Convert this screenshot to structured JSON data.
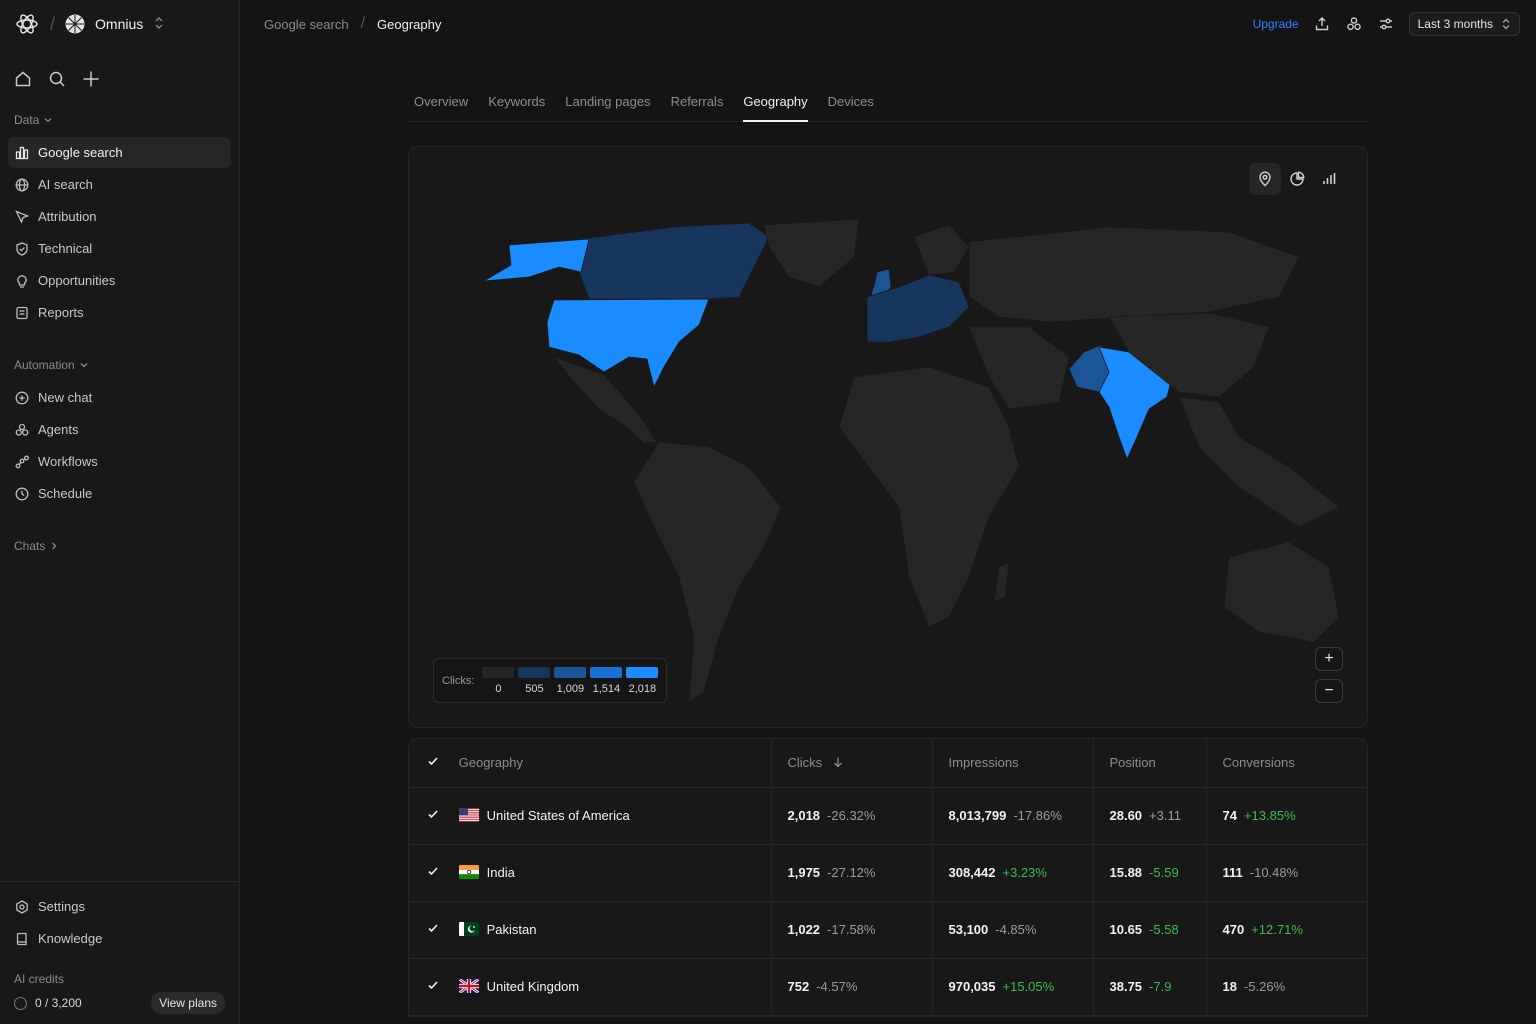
{
  "workspace": {
    "name": "Omnius"
  },
  "sidebar": {
    "data_section": "Data",
    "data_items": [
      {
        "label": "Google search",
        "icon": "bar-chart-icon",
        "active": true
      },
      {
        "label": "AI search",
        "icon": "globe-icon"
      },
      {
        "label": "Attribution",
        "icon": "cursor-icon"
      },
      {
        "label": "Technical",
        "icon": "shield-icon"
      },
      {
        "label": "Opportunities",
        "icon": "lightbulb-icon"
      },
      {
        "label": "Reports",
        "icon": "document-icon"
      }
    ],
    "automation_section": "Automation",
    "automation_items": [
      {
        "label": "New chat",
        "icon": "plus-circle-icon"
      },
      {
        "label": "Agents",
        "icon": "agents-icon"
      },
      {
        "label": "Workflows",
        "icon": "workflow-icon"
      },
      {
        "label": "Schedule",
        "icon": "clock-icon"
      }
    ],
    "chats_section": "Chats",
    "bottom_items": [
      {
        "label": "Settings",
        "icon": "gear-icon"
      },
      {
        "label": "Knowledge",
        "icon": "book-icon"
      }
    ],
    "credits_label": "AI credits",
    "credits_value": "0 / 3,200",
    "view_plans": "View plans"
  },
  "topbar": {
    "breadcrumb": [
      "Google search",
      "Geography"
    ],
    "upgrade": "Upgrade",
    "date_range": "Last 3 months"
  },
  "tabs": [
    "Overview",
    "Keywords",
    "Landing pages",
    "Referrals",
    "Geography",
    "Devices"
  ],
  "active_tab": "Geography",
  "map": {
    "legend_label": "Clicks:",
    "legend_steps": [
      {
        "value": "0",
        "color": "#262626"
      },
      {
        "value": "505",
        "color": "#16365e"
      },
      {
        "value": "1,009",
        "color": "#1b5596"
      },
      {
        "value": "1,514",
        "color": "#1672d6"
      },
      {
        "value": "2,018",
        "color": "#1b8cff"
      }
    ],
    "zoom_in": "+",
    "zoom_out": "−",
    "colors": {
      "empty": "#262626",
      "low": "#16365e",
      "mid": "#1b5596",
      "high": "#1b8cff"
    }
  },
  "table": {
    "headers": {
      "geography": "Geography",
      "clicks": "Clicks",
      "impressions": "Impressions",
      "position": "Position",
      "conversions": "Conversions"
    },
    "rows": [
      {
        "country": "United States of America",
        "clicks": "2,018",
        "clicks_delta": "-26.32%",
        "clicks_pos": false,
        "impressions": "8,013,799",
        "impressions_delta": "-17.86%",
        "impressions_pos": false,
        "position": "28.60",
        "position_delta": "+3.11",
        "position_pos": false,
        "conversions": "74",
        "conversions_delta": "+13.85%",
        "conversions_pos": true
      },
      {
        "country": "India",
        "clicks": "1,975",
        "clicks_delta": "-27.12%",
        "clicks_pos": false,
        "impressions": "308,442",
        "impressions_delta": "+3.23%",
        "impressions_pos": true,
        "position": "15.88",
        "position_delta": "-5.59",
        "position_pos": true,
        "conversions": "111",
        "conversions_delta": "-10.48%",
        "conversions_pos": false
      },
      {
        "country": "Pakistan",
        "clicks": "1,022",
        "clicks_delta": "-17.58%",
        "clicks_pos": false,
        "impressions": "53,100",
        "impressions_delta": "-4.85%",
        "impressions_pos": false,
        "position": "10.65",
        "position_delta": "-5.58",
        "position_pos": true,
        "conversions": "470",
        "conversions_delta": "+12.71%",
        "conversions_pos": true
      },
      {
        "country": "United Kingdom",
        "clicks": "752",
        "clicks_delta": "-4.57%",
        "clicks_pos": false,
        "impressions": "970,035",
        "impressions_delta": "+15.05%",
        "impressions_pos": true,
        "position": "38.75",
        "position_delta": "-7.9",
        "position_pos": true,
        "conversions": "18",
        "conversions_delta": "-5.26%",
        "conversions_pos": false
      }
    ]
  }
}
